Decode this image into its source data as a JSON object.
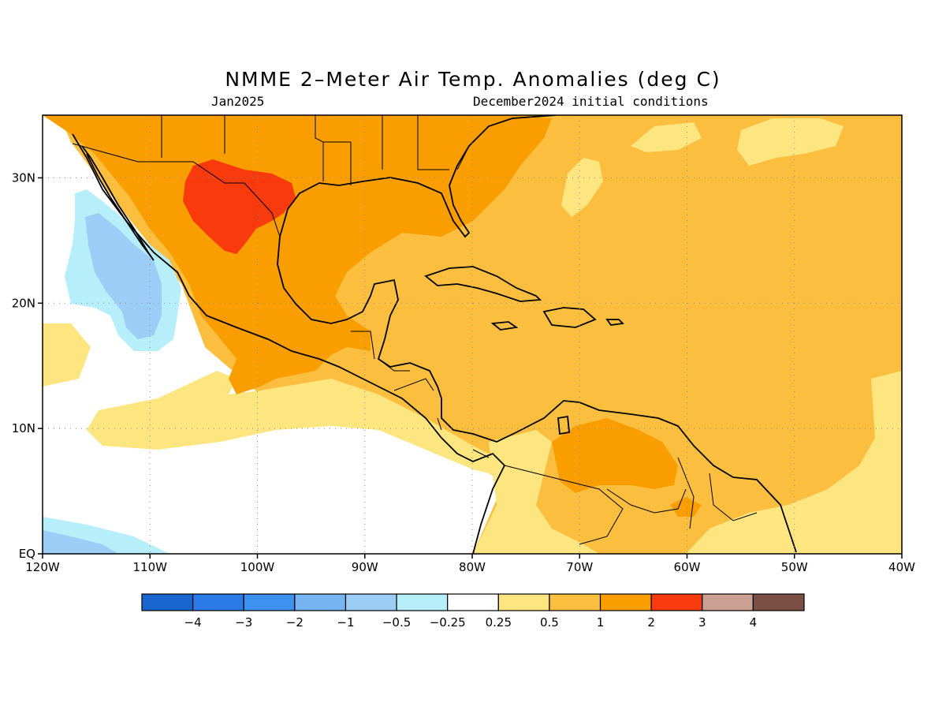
{
  "title": "NMME 2–Meter Air Temp. Anomalies (deg C)",
  "subtitle_left": "Jan2025",
  "subtitle_right": "December2024 initial conditions",
  "map": {
    "lon_range": [
      -120,
      -40
    ],
    "lat_range": [
      0,
      35
    ],
    "x_ticks": [
      {
        "lon": -120,
        "label": "120W"
      },
      {
        "lon": -110,
        "label": "110W"
      },
      {
        "lon": -100,
        "label": "100W"
      },
      {
        "lon": -90,
        "label": "90W"
      },
      {
        "lon": -80,
        "label": "80W"
      },
      {
        "lon": -70,
        "label": "70W"
      },
      {
        "lon": -60,
        "label": "60W"
      },
      {
        "lon": -50,
        "label": "50W"
      },
      {
        "lon": -40,
        "label": "40W"
      }
    ],
    "y_ticks": [
      {
        "lat": 0,
        "label": "EQ"
      },
      {
        "lat": 10,
        "label": "10N"
      },
      {
        "lat": 20,
        "label": "20N"
      },
      {
        "lat": 30,
        "label": "30N"
      }
    ],
    "grid": "dotted"
  },
  "legend": {
    "colors": [
      "#1b65cf",
      "#2a7ae8",
      "#3d92f0",
      "#76b4f2",
      "#9ccdf6",
      "#b6eefa",
      "#ffffff",
      "#fde680",
      "#fbbe3f",
      "#fa9e00",
      "#f93a0c",
      "#caa093",
      "#7c4f45"
    ],
    "labels": [
      "−4",
      "−3",
      "−2",
      "−1",
      "−0.5",
      "−0.25",
      "0.25",
      "0.5",
      "1",
      "2",
      "3",
      "4"
    ]
  }
}
